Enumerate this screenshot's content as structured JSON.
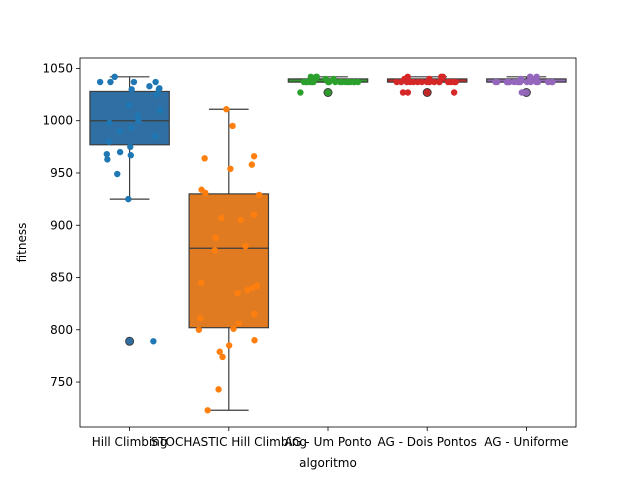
{
  "chart_data": {
    "type": "box",
    "xlabel": "algoritmo",
    "ylabel": "fitness",
    "ylim": [
      707,
      1060
    ],
    "yticks": [
      750,
      800,
      850,
      900,
      950,
      1000,
      1050
    ],
    "grid": false,
    "categories": [
      "Hill Climbing",
      "STOCHASTIC Hill Climbing",
      "AG - Um Ponto",
      "AG - Dois Pontos",
      "AG - Uniforme"
    ],
    "box_color_names": [
      "blue",
      "orange",
      "green",
      "red",
      "purple"
    ],
    "box_colors": [
      "#2f6fa3",
      "#e07b22",
      "#2e9a2e",
      "#c42727",
      "#8f67b3"
    ],
    "point_colors": [
      "#1f77b4",
      "#ff7f0e",
      "#2ca02c",
      "#d62728",
      "#9467bd"
    ],
    "series": [
      {
        "q1": 977,
        "median": 1000,
        "q3": 1028,
        "whisker_low": 925,
        "whisker_high": 1042,
        "outliers": [
          789
        ],
        "points": [
          1042,
          1037,
          1037,
          1037,
          1037,
          1033,
          1031,
          1030,
          1030,
          1025,
          1015,
          1010,
          1005,
          1000,
          998,
          993,
          990,
          985,
          980,
          975,
          970,
          968,
          967,
          963,
          949,
          925,
          789
        ]
      },
      {
        "q1": 802,
        "median": 878,
        "q3": 930,
        "whisker_low": 723,
        "whisker_high": 1011,
        "outliers": [],
        "points": [
          1011,
          995,
          966,
          964,
          958,
          954,
          934,
          931,
          929,
          910,
          907,
          905,
          888,
          880,
          876,
          845,
          842,
          840,
          838,
          835,
          815,
          811,
          806,
          801,
          800,
          790,
          785,
          779,
          774,
          743,
          723
        ]
      },
      {
        "q1": 1037,
        "median": 1037,
        "q3": 1040,
        "whisker_low": 1037,
        "whisker_high": 1042,
        "outliers": [
          1027
        ],
        "points": [
          1042,
          1042,
          1042,
          1040,
          1040,
          1037,
          1037,
          1037,
          1037,
          1037,
          1037,
          1037,
          1037,
          1037,
          1037,
          1037,
          1037,
          1037,
          1037,
          1037,
          1037,
          1037,
          1027
        ]
      },
      {
        "q1": 1037,
        "median": 1037,
        "q3": 1040,
        "whisker_low": 1037,
        "whisker_high": 1042,
        "outliers": [
          1027
        ],
        "points": [
          1042,
          1042,
          1042,
          1040,
          1040,
          1037,
          1037,
          1037,
          1037,
          1037,
          1037,
          1037,
          1037,
          1037,
          1037,
          1037,
          1037,
          1037,
          1037,
          1037,
          1037,
          1027,
          1027,
          1027
        ]
      },
      {
        "q1": 1037,
        "median": 1037,
        "q3": 1040,
        "whisker_low": 1037,
        "whisker_high": 1042,
        "outliers": [
          1027
        ],
        "points": [
          1042,
          1042,
          1042,
          1040,
          1040,
          1037,
          1037,
          1037,
          1037,
          1037,
          1037,
          1037,
          1037,
          1037,
          1037,
          1037,
          1037,
          1037,
          1037,
          1037,
          1037,
          1037,
          1027
        ]
      }
    ]
  }
}
